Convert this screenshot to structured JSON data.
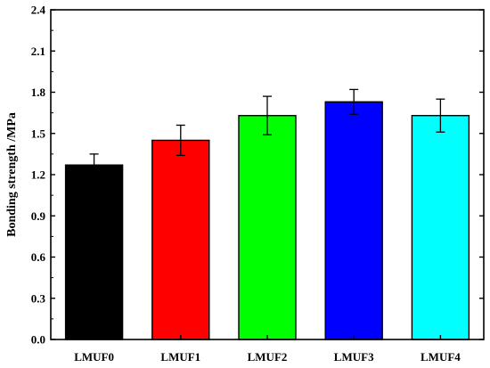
{
  "chart_data": {
    "type": "bar",
    "categories": [
      "LMUF0",
      "LMUF1",
      "LMUF2",
      "LMUF3",
      "LMUF4"
    ],
    "values": [
      1.27,
      1.45,
      1.63,
      1.73,
      1.63
    ],
    "errors": [
      0.08,
      0.11,
      0.14,
      0.09,
      0.12
    ],
    "colors": [
      "#000000",
      "#ff0000",
      "#00ff00",
      "#0000ff",
      "#00ffff"
    ],
    "ylabel": "Bonding strength /MPa",
    "xlabel": "",
    "ylim": [
      0.0,
      2.4
    ],
    "yticks": [
      "0.0",
      "0.3",
      "0.6",
      "0.9",
      "1.2",
      "1.5",
      "1.8",
      "2.1",
      "2.4"
    ],
    "grid": false
  }
}
